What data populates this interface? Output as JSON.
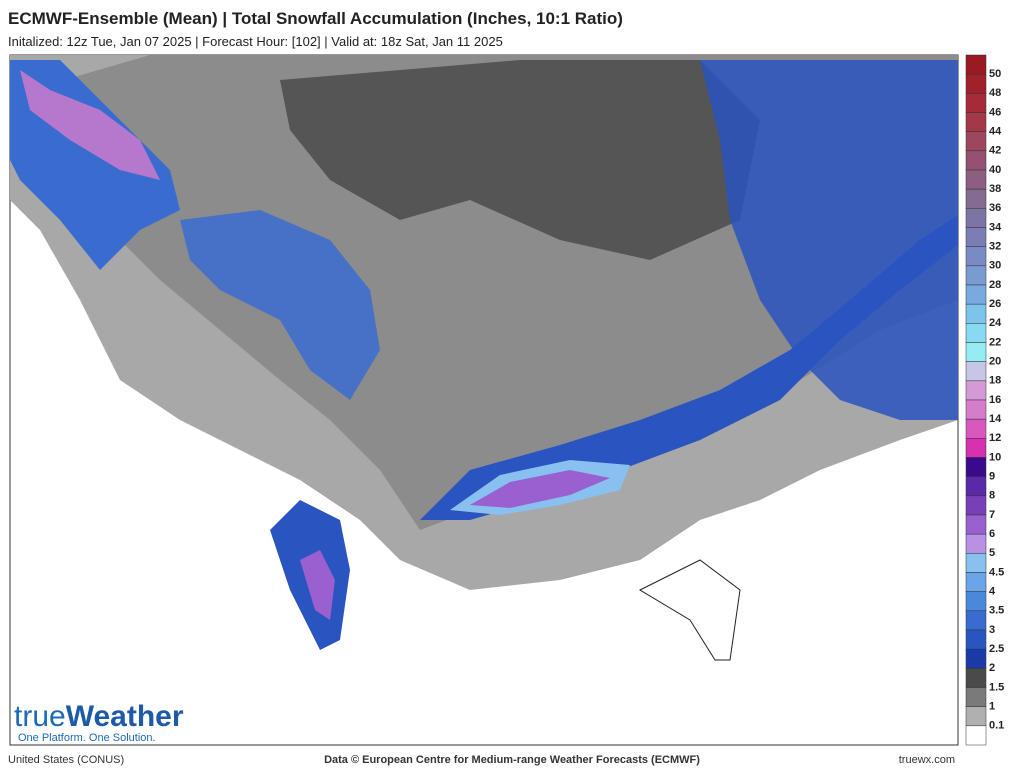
{
  "header": {
    "title": "ECMWF-Ensemble (Mean)  | Total Snowfall Accumulation (Inches, 10:1 Ratio)",
    "subtitle": "Initalized: 12z Tue, Jan 07 2025  | Forecast Hour: [102]  | Valid at: 18z Sat, Jan 11 2025"
  },
  "legend": {
    "labels": [
      50,
      48,
      46,
      44,
      42,
      40,
      38,
      36,
      34,
      32,
      30,
      28,
      26,
      24,
      22,
      20,
      18,
      16,
      14,
      12,
      10,
      9,
      8,
      7,
      6,
      5,
      4.5,
      4,
      3.5,
      3,
      2.5,
      2,
      1.5,
      1,
      0.1
    ],
    "colors": [
      "#9a1a22",
      "#a0202c",
      "#a52a3a",
      "#a33848",
      "#9c4660",
      "#955270",
      "#8c5e82",
      "#856a92",
      "#7e74a4",
      "#7a7eb4",
      "#7a8ac4",
      "#7a9ad2",
      "#78aae0",
      "#7cc4ee",
      "#88daf2",
      "#96ecf4",
      "#c8c6e8",
      "#d49ad8",
      "#d67ccc",
      "#d858c0",
      "#d830b0",
      "#3a0a8c",
      "#5a28a8",
      "#7840b8",
      "#9a60d0",
      "#b890e6",
      "#88c0f0",
      "#6aa4ea",
      "#4a88dc",
      "#3a6cd0",
      "#2a54c0",
      "#1a3aa8",
      "#4a4a4a",
      "#7a7a7a",
      "#b0b0b0",
      "#ffffff"
    ]
  },
  "logo": {
    "brand_part1": "true",
    "brand_part2": "Weather",
    "tagline": "One Platform. One Solution."
  },
  "footer": {
    "region": "United States (CONUS)",
    "credit": "Data © European Centre for Medium-range Weather Forecasts (ECMWF)",
    "site": "truewx.com"
  }
}
